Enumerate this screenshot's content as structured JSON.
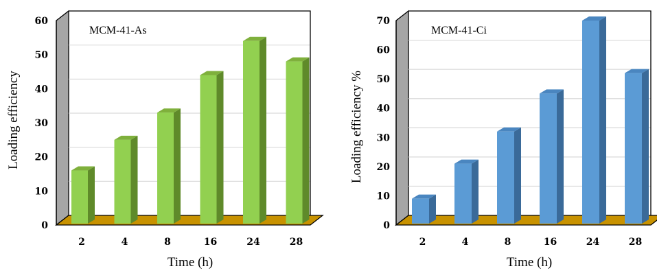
{
  "chart_data": [
    {
      "type": "bar",
      "title": "MCM-41-As",
      "xlabel": "Time (h)",
      "ylabel": "Loading efficiency",
      "categories": [
        "2",
        "4",
        "8",
        "16",
        "24",
        "28"
      ],
      "values": [
        16,
        25,
        33,
        44,
        54,
        48
      ],
      "ylim": [
        0,
        60
      ],
      "yticks": [
        "0",
        "10",
        "20",
        "30",
        "40",
        "50",
        "60"
      ],
      "grid": true,
      "colors": {
        "front": "#92d050",
        "side": "#5f8a2a",
        "top": "#7fb03c",
        "floor": "#c89200",
        "wall": "#a6a6a6"
      }
    },
    {
      "type": "bar",
      "title": "MCM-41-Ci",
      "xlabel": "Time (h)",
      "ylabel": "Loading efficiency %",
      "categories": [
        "2",
        "4",
        "8",
        "16",
        "24",
        "28"
      ],
      "values": [
        9,
        21,
        32,
        45,
        70,
        52
      ],
      "ylim": [
        0,
        70
      ],
      "yticks": [
        "0",
        "10",
        "20",
        "30",
        "40",
        "50",
        "60",
        "70"
      ],
      "grid": true,
      "colors": {
        "front": "#5b9bd5",
        "side": "#3a6a99",
        "top": "#4a86c0",
        "floor": "#c89200",
        "wall": "#a6a6a6"
      }
    }
  ]
}
